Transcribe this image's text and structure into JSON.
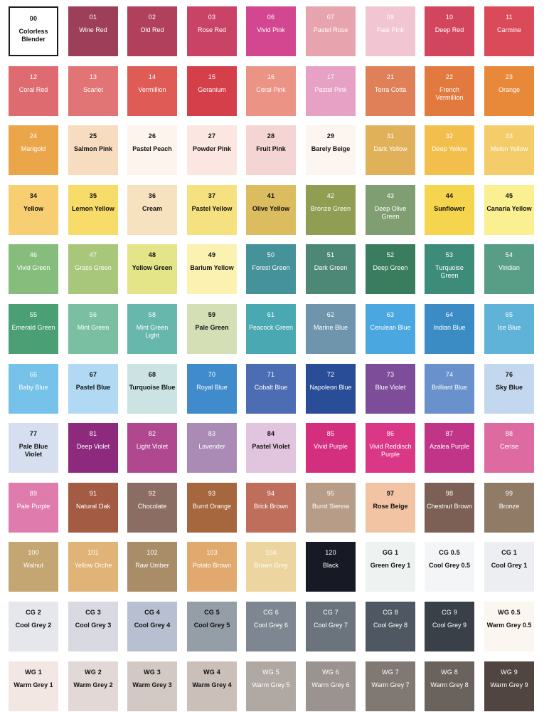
{
  "title": "",
  "swatches": [
    {
      "code": "00",
      "name": "Colorless Blender",
      "color": "#ffffff",
      "text": "light",
      "outlined": true
    },
    {
      "code": "01",
      "name": "Wine Red",
      "color": "#9e3f5a",
      "text": "dark"
    },
    {
      "code": "02",
      "name": "Old Red",
      "color": "#b0405c",
      "text": "dark"
    },
    {
      "code": "03",
      "name": "Rose Red",
      "color": "#c84366",
      "text": "dark"
    },
    {
      "code": "06",
      "name": "Vivid Pink",
      "color": "#d2478f",
      "text": "dark"
    },
    {
      "code": "07",
      "name": "Pastel Rose",
      "color": "#e7a3ae",
      "text": "dark"
    },
    {
      "code": "09",
      "name": "Pale Pink",
      "color": "#f1c6d2",
      "text": "dark"
    },
    {
      "code": "10",
      "name": "Deep Red",
      "color": "#d2465d",
      "text": "dark"
    },
    {
      "code": "11",
      "name": "Carmine",
      "color": "#da4a58",
      "text": "dark"
    },
    {
      "code": "12",
      "name": "Coral Red",
      "color": "#de6b70",
      "text": "dark"
    },
    {
      "code": "13",
      "name": "Scarlet",
      "color": "#e17575",
      "text": "dark"
    },
    {
      "code": "14",
      "name": "Vermillion",
      "color": "#df5c56",
      "text": "dark"
    },
    {
      "code": "15",
      "name": "Geranium",
      "color": "#d43f4a",
      "text": "dark"
    },
    {
      "code": "16",
      "name": "Coral Pink",
      "color": "#eb9385",
      "text": "dark"
    },
    {
      "code": "17",
      "name": "Pastel Pink",
      "color": "#e6a1c4",
      "text": "dark"
    },
    {
      "code": "21",
      "name": "Terra Cotta",
      "color": "#df8058",
      "text": "dark"
    },
    {
      "code": "22",
      "name": "French Vermillion",
      "color": "#e2793f",
      "text": "dark"
    },
    {
      "code": "23",
      "name": "Orange",
      "color": "#e8893a",
      "text": "dark"
    },
    {
      "code": "24",
      "name": "Marigold",
      "color": "#eba64a",
      "text": "dark"
    },
    {
      "code": "25",
      "name": "Salmon Pink",
      "color": "#f8dcc0",
      "text": "light"
    },
    {
      "code": "26",
      "name": "Pastel Peach",
      "color": "#fdf4ee",
      "text": "light"
    },
    {
      "code": "27",
      "name": "Powder Pink",
      "color": "#fbe6e1",
      "text": "light"
    },
    {
      "code": "28",
      "name": "Fruit Pink",
      "color": "#f5d5d3",
      "text": "light"
    },
    {
      "code": "29",
      "name": "Barely Beige",
      "color": "#fdf5ef",
      "text": "light"
    },
    {
      "code": "31",
      "name": "Dark Yellow",
      "color": "#e1b15a",
      "text": "dark"
    },
    {
      "code": "32",
      "name": "Deep Yellow",
      "color": "#f2bf4c",
      "text": "dark"
    },
    {
      "code": "33",
      "name": "Melon Yellow",
      "color": "#f4cc6a",
      "text": "dark"
    },
    {
      "code": "34",
      "name": "Yellow",
      "color": "#f7cf72",
      "text": "light"
    },
    {
      "code": "35",
      "name": "Lemon Yellow",
      "color": "#f8dc6a",
      "text": "light"
    },
    {
      "code": "36",
      "name": "Cream",
      "color": "#f7e2bf",
      "text": "light"
    },
    {
      "code": "37",
      "name": "Pastel Yellow",
      "color": "#f6e180",
      "text": "light"
    },
    {
      "code": "41",
      "name": "Olive Yellow",
      "color": "#dbbd60",
      "text": "light"
    },
    {
      "code": "42",
      "name": "Bronze Green",
      "color": "#8f9e53",
      "text": "dark"
    },
    {
      "code": "43",
      "name": "Deep Olive Green",
      "color": "#7f9f72",
      "text": "dark"
    },
    {
      "code": "44",
      "name": "Sunflower",
      "color": "#f5d44e",
      "text": "light"
    },
    {
      "code": "45",
      "name": "Canaria Yellow",
      "color": "#faf091",
      "text": "light"
    },
    {
      "code": "46",
      "name": "Vivid Green",
      "color": "#86bd7c",
      "text": "dark"
    },
    {
      "code": "47",
      "name": "Grass Green",
      "color": "#a8c77b",
      "text": "dark"
    },
    {
      "code": "48",
      "name": "Yellow Green",
      "color": "#e4e588",
      "text": "light"
    },
    {
      "code": "49",
      "name": "Barium Yellow",
      "color": "#fbf2b2",
      "text": "light"
    },
    {
      "code": "50",
      "name": "Forest Green",
      "color": "#46929a",
      "text": "dark"
    },
    {
      "code": "51",
      "name": "Dark Green",
      "color": "#4d8877",
      "text": "dark"
    },
    {
      "code": "52",
      "name": "Deep Green",
      "color": "#3a7c5e",
      "text": "dark"
    },
    {
      "code": "53",
      "name": "Turquoise Green",
      "color": "#3d8c79",
      "text": "dark"
    },
    {
      "code": "54",
      "name": "Viridian",
      "color": "#589e86",
      "text": "dark"
    },
    {
      "code": "55",
      "name": "Emerald Green",
      "color": "#4a9f74",
      "text": "dark"
    },
    {
      "code": "56",
      "name": "Mint Green",
      "color": "#7abfa1",
      "text": "dark"
    },
    {
      "code": "58",
      "name": "Mint Green Light",
      "color": "#67b7ad",
      "text": "dark"
    },
    {
      "code": "59",
      "name": "Pale Green",
      "color": "#d4dfb6",
      "text": "light"
    },
    {
      "code": "61",
      "name": "Peacock Green",
      "color": "#4aa8b2",
      "text": "dark"
    },
    {
      "code": "62",
      "name": "Marine Blue",
      "color": "#6f95ad",
      "text": "dark"
    },
    {
      "code": "63",
      "name": "Cerulean Blue",
      "color": "#4aa7e0",
      "text": "dark"
    },
    {
      "code": "64",
      "name": "Indian Blue",
      "color": "#3b8bc5",
      "text": "dark"
    },
    {
      "code": "65",
      "name": "Ice Blue",
      "color": "#60b3d8",
      "text": "dark"
    },
    {
      "code": "66",
      "name": "Baby Blue",
      "color": "#76c2e8",
      "text": "dark"
    },
    {
      "code": "67",
      "name": "Pastel Blue",
      "color": "#b2d9f4",
      "text": "light"
    },
    {
      "code": "68",
      "name": "Turquoise Blue",
      "color": "#cbe3e2",
      "text": "light"
    },
    {
      "code": "70",
      "name": "Royal Blue",
      "color": "#3f8bcc",
      "text": "dark"
    },
    {
      "code": "71",
      "name": "Cobalt Blue",
      "color": "#4c6cb3",
      "text": "dark"
    },
    {
      "code": "72",
      "name": "Napoleon Blue",
      "color": "#2a4d98",
      "text": "dark"
    },
    {
      "code": "73",
      "name": "Blue Violet",
      "color": "#7e4d9a",
      "text": "dark"
    },
    {
      "code": "74",
      "name": "Brilliant Blue",
      "color": "#6991cb",
      "text": "dark"
    },
    {
      "code": "76",
      "name": "Sky Blue",
      "color": "#c3d8ef",
      "text": "light"
    },
    {
      "code": "77",
      "name": "Pale Blue Violet",
      "color": "#d6dff0",
      "text": "light"
    },
    {
      "code": "81",
      "name": "Deep Violet",
      "color": "#8e2a7d",
      "text": "dark"
    },
    {
      "code": "82",
      "name": "Light Violet",
      "color": "#b0488f",
      "text": "dark"
    },
    {
      "code": "83",
      "name": "Lavender",
      "color": "#a98bb6",
      "text": "dark"
    },
    {
      "code": "84",
      "name": "Pastel Violet",
      "color": "#e1c4de",
      "text": "light"
    },
    {
      "code": "85",
      "name": "Vivid Purple",
      "color": "#d42f7e",
      "text": "dark"
    },
    {
      "code": "86",
      "name": "Vivid Reddisch Purple",
      "color": "#db3787",
      "text": "dark"
    },
    {
      "code": "87",
      "name": "Azalea Purple",
      "color": "#c03587",
      "text": "dark"
    },
    {
      "code": "88",
      "name": "Cerise",
      "color": "#dd6aa1",
      "text": "dark"
    },
    {
      "code": "89",
      "name": "Pale Purple",
      "color": "#e07cad",
      "text": "dark"
    },
    {
      "code": "91",
      "name": "Natural Oak",
      "color": "#a35b44",
      "text": "dark"
    },
    {
      "code": "92",
      "name": "Chocolate",
      "color": "#8c6d63",
      "text": "dark"
    },
    {
      "code": "93",
      "name": "Burnt Orange",
      "color": "#a6673f",
      "text": "dark"
    },
    {
      "code": "94",
      "name": "Brick Brown",
      "color": "#c06e5c",
      "text": "dark"
    },
    {
      "code": "95",
      "name": "Burnt Sienna",
      "color": "#b79d88",
      "text": "dark"
    },
    {
      "code": "97",
      "name": "Rose Beige",
      "color": "#f2c4a3",
      "text": "light"
    },
    {
      "code": "98",
      "name": "Chestnut Brown",
      "color": "#7c6055",
      "text": "dark"
    },
    {
      "code": "99",
      "name": "Bronze",
      "color": "#8f7b66",
      "text": "dark"
    },
    {
      "code": "100",
      "name": "Walnut",
      "color": "#c3a672",
      "text": "dark"
    },
    {
      "code": "101",
      "name": "Yellow Orche",
      "color": "#dfb476",
      "text": "dark"
    },
    {
      "code": "102",
      "name": "Raw Umber",
      "color": "#a98c68",
      "text": "dark"
    },
    {
      "code": "103",
      "name": "Potato Brown",
      "color": "#e2a96e",
      "text": "dark"
    },
    {
      "code": "104",
      "name": "Brown Grey",
      "color": "#ecd59e",
      "text": "dark"
    },
    {
      "code": "120",
      "name": "Black",
      "color": "#171a24",
      "text": "dark"
    },
    {
      "code": "GG 1",
      "name": "Green Grey 1",
      "color": "#eef3f1",
      "text": "light"
    },
    {
      "code": "CG 0.5",
      "name": "Cool Grey 0.5",
      "color": "#f4f5f7",
      "text": "light"
    },
    {
      "code": "CG 1",
      "name": "Cool Grey 1",
      "color": "#edeef2",
      "text": "light"
    },
    {
      "code": "CG 2",
      "name": "Cool Grey 2",
      "color": "#e6e7ec",
      "text": "light"
    },
    {
      "code": "CG 3",
      "name": "Cool Grey 3",
      "color": "#d8d9e1",
      "text": "light"
    },
    {
      "code": "CG 4",
      "name": "Cool Grey 4",
      "color": "#b7bfd0",
      "text": "light"
    },
    {
      "code": "CG 5",
      "name": "Cool Grey 5",
      "color": "#959da7",
      "text": "light"
    },
    {
      "code": "CG 6",
      "name": "Cool Grey 6",
      "color": "#7e8791",
      "text": "dark"
    },
    {
      "code": "CG 7",
      "name": "Cool Grey 7",
      "color": "#6b747d",
      "text": "dark"
    },
    {
      "code": "CG 8",
      "name": "Cool Grey 8",
      "color": "#4f5862",
      "text": "dark"
    },
    {
      "code": "CG 9",
      "name": "Cool Grey 9",
      "color": "#3a4048",
      "text": "dark"
    },
    {
      "code": "WG 0.5",
      "name": "Warm Grey 0.5",
      "color": "#fcf6f0",
      "text": "light"
    },
    {
      "code": "WG 1",
      "name": "Warm Grey 1",
      "color": "#f3e7e4",
      "text": "light"
    },
    {
      "code": "WG 2",
      "name": "Warm Grey 2",
      "color": "#e2d9d6",
      "text": "light"
    },
    {
      "code": "WG 3",
      "name": "Warm Grey 3",
      "color": "#d3c9c4",
      "text": "light"
    },
    {
      "code": "WG 4",
      "name": "Warm Grey 4",
      "color": "#cbbfb9",
      "text": "light"
    },
    {
      "code": "WG 5",
      "name": "Warm Grey 5",
      "color": "#b0a8a2",
      "text": "dark"
    },
    {
      "code": "WG 6",
      "name": "Warm Grey 6",
      "color": "#9b938f",
      "text": "dark"
    },
    {
      "code": "WG 7",
      "name": "Warm Grey 7",
      "color": "#807873",
      "text": "dark"
    },
    {
      "code": "WG 8",
      "name": "Warm Grey 8",
      "color": "#6a625c",
      "text": "dark"
    },
    {
      "code": "WG 9",
      "name": "Warm Grey 9",
      "color": "#504540",
      "text": "dark"
    }
  ]
}
